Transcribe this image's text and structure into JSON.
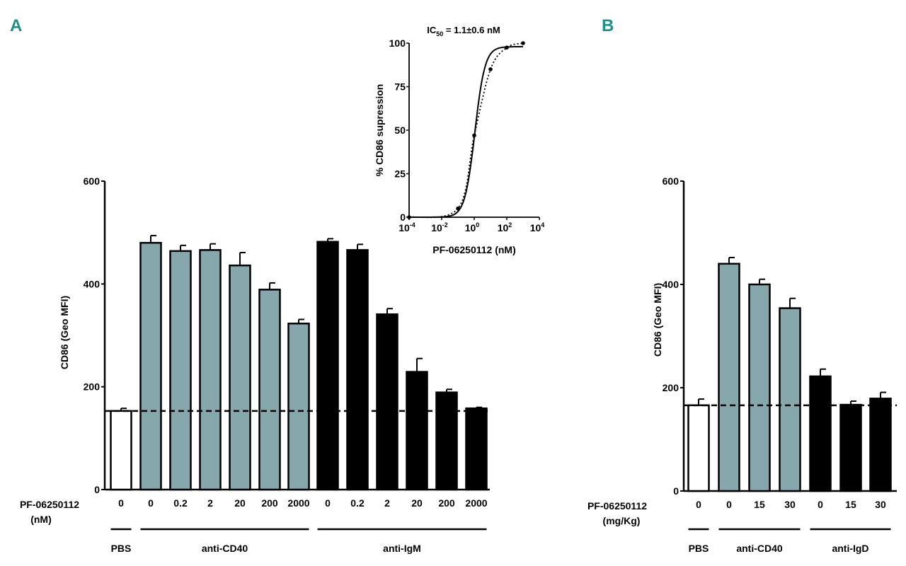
{
  "panels": {
    "a": "A",
    "b": "B"
  },
  "colors": {
    "teal": "#86a8ad",
    "black": "#000000",
    "white": "#ffffff",
    "panel_letter": "#1b8f8a"
  },
  "chart_data": [
    {
      "id": "A",
      "type": "bar",
      "ylabel": "CD86 (Geo MFI)",
      "xlabel": [
        "PF-06250112",
        "(nM)"
      ],
      "ylim": [
        0,
        600
      ],
      "yticks": [
        0,
        200,
        400,
        600
      ],
      "reference_line": 153,
      "categories": [
        "0",
        "0",
        "0.2",
        "2",
        "20",
        "200",
        "2000",
        "0",
        "0.2",
        "2",
        "20",
        "200",
        "2000"
      ],
      "groups": [
        {
          "name": "PBS",
          "fill": "white",
          "values": [
            153
          ],
          "errors": [
            5
          ]
        },
        {
          "name": "anti-CD40",
          "fill": "teal",
          "values": [
            480,
            464,
            466,
            436,
            389,
            323
          ],
          "errors": [
            14,
            11,
            12,
            25,
            13,
            8
          ]
        },
        {
          "name": "anti-IgM",
          "fill": "black",
          "values": [
            482,
            466,
            341,
            229,
            189,
            158
          ],
          "errors": [
            6,
            11,
            11,
            26,
            6,
            2
          ]
        }
      ]
    },
    {
      "id": "A-inset",
      "type": "line",
      "title": "IC50 = 1.1±0.6 nM",
      "title_main": "IC",
      "title_sub": "50",
      "title_rest": " = 1.1±0.6 nM",
      "ylabel": "% CD86 supression",
      "xlabel": "PF-06250112 (nM)",
      "xscale": "log",
      "xlim": [
        0.0001,
        10000
      ],
      "xticks": [
        {
          "base": "10",
          "exp": "-4"
        },
        {
          "base": "10",
          "exp": "-2"
        },
        {
          "base": "10",
          "exp": "0"
        },
        {
          "base": "10",
          "exp": "2"
        },
        {
          "base": "10",
          "exp": "4"
        }
      ],
      "ylim": [
        0,
        100
      ],
      "yticks": [
        0,
        25,
        50,
        75,
        100
      ],
      "points": {
        "x": [
          0.0001,
          0.1,
          1,
          10,
          100,
          1000
        ],
        "y": [
          0,
          5,
          47,
          85,
          97.5,
          100
        ]
      },
      "fit": {
        "ic50": 1.1,
        "hill": 1.4,
        "top": 98,
        "style": "solid"
      },
      "trend": {
        "style": "dotted"
      }
    },
    {
      "id": "B",
      "type": "bar",
      "ylabel": "CD86 (Geo MFI)",
      "xlabel": [
        "PF-06250112",
        "(mg/Kg)"
      ],
      "ylim": [
        0,
        600
      ],
      "yticks": [
        0,
        200,
        400,
        600
      ],
      "reference_line": 166,
      "categories": [
        "0",
        "0",
        "15",
        "30",
        "0",
        "15",
        "30"
      ],
      "groups": [
        {
          "name": "PBS",
          "fill": "white",
          "values": [
            166
          ],
          "errors": [
            12
          ]
        },
        {
          "name": "anti-CD40",
          "fill": "teal",
          "values": [
            440,
            400,
            354
          ],
          "errors": [
            12,
            10,
            19
          ]
        },
        {
          "name": "anti-IgD",
          "fill": "black",
          "values": [
            222,
            167,
            179
          ],
          "errors": [
            14,
            7,
            12
          ]
        }
      ]
    }
  ]
}
